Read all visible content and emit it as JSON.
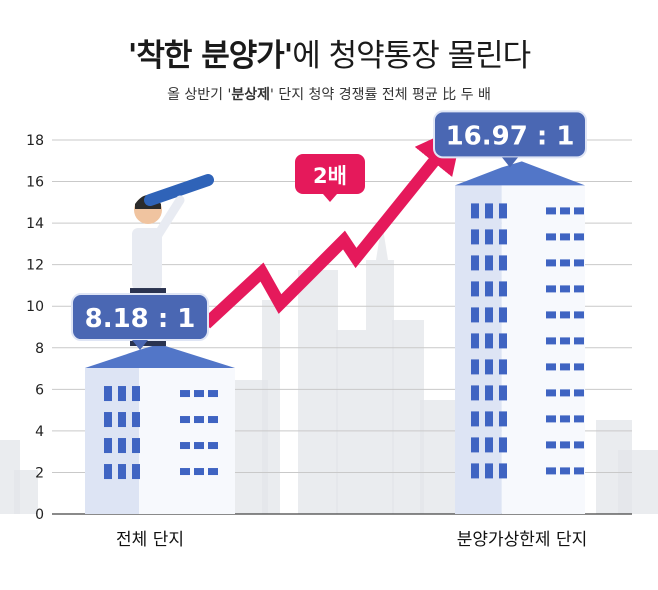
{
  "title": {
    "quote_open": "'",
    "highlight": "착한 분양가",
    "quote_close": "'",
    "rest": "에 청약통장 몰린다"
  },
  "subtitle": {
    "pre": "올 상반기 '",
    "highlight": "분상제",
    "post": "' 단지 청약 경쟁률 전체 평균 比 두 배"
  },
  "colors": {
    "background": "#ffffff",
    "label_box": "#4a67b3",
    "label_border": "#dfe5f5",
    "badge": "#e5195b",
    "arrow": "#e5195b",
    "building_face": "#e9eef8",
    "building_roof": "#5276c8",
    "window": "#3f64c2",
    "skyline": "#e3e5ea"
  },
  "chart_data": {
    "type": "bar",
    "categories": [
      "전체 단지",
      "분양가상한제 단지"
    ],
    "values": [
      8.18,
      16.97
    ],
    "value_labels": [
      "8.18 : 1",
      "16.97 : 1"
    ],
    "ratio_badge": "2배",
    "ylim": [
      0,
      18
    ],
    "yticks": [
      0,
      2,
      4,
      6,
      8,
      10,
      12,
      14,
      16,
      18
    ],
    "grid": true,
    "bar_style": "buildings"
  }
}
